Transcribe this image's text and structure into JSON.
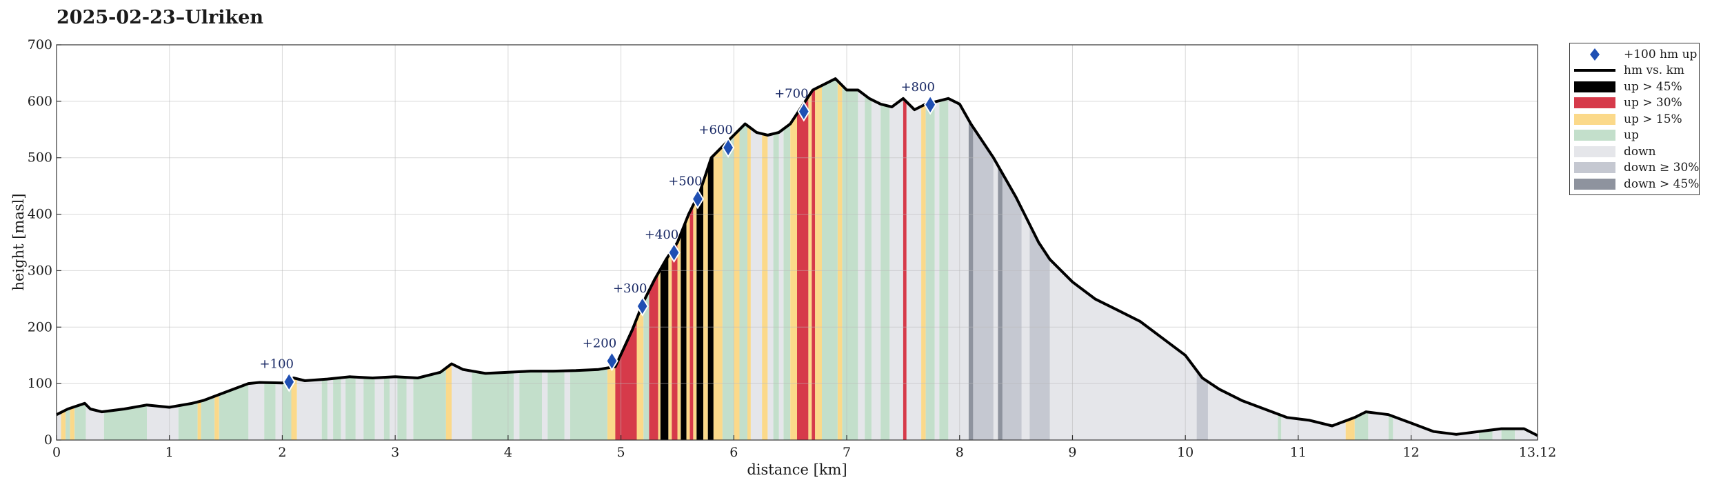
{
  "chart_data": {
    "type": "area",
    "title": "2025-02-23–Ulriken",
    "xlabel": "distance [km]",
    "ylabel": "height [masl]",
    "xlim": [
      0,
      13.12
    ],
    "ylim": [
      0,
      700
    ],
    "x_ticks": [
      "0",
      "1",
      "2",
      "3",
      "4",
      "5",
      "6",
      "7",
      "8",
      "9",
      "10",
      "11",
      "12",
      "13.12"
    ],
    "x_tick_values": [
      0,
      1,
      2,
      3,
      4,
      5,
      6,
      7,
      8,
      9,
      10,
      11,
      12,
      13.12
    ],
    "y_ticks": [
      "0",
      "100",
      "200",
      "300",
      "400",
      "500",
      "600",
      "700"
    ],
    "y_tick_values": [
      0,
      100,
      200,
      300,
      400,
      500,
      600,
      700
    ],
    "grid": true,
    "legend_placement": "outside-right",
    "colors": {
      "up_gt_45": "#000000",
      "up_gt_30": "#d63a4a",
      "up_gt_15": "#fbd98a",
      "up": "#c3dfcb",
      "down": "#e5e6ea",
      "down_ge_30": "#c5c8d1",
      "down_gt_45": "#8e939e",
      "profile_line": "#000000",
      "marker": "#1f4fb3"
    },
    "legend": [
      {
        "key": "marker",
        "label": "+100 hm up"
      },
      {
        "key": "line",
        "label": "hm vs. km"
      },
      {
        "key": "up_gt_45",
        "label": "up > 45%"
      },
      {
        "key": "up_gt_30",
        "label": "up > 30%"
      },
      {
        "key": "up_gt_15",
        "label": "up > 15%"
      },
      {
        "key": "up",
        "label": "up"
      },
      {
        "key": "down",
        "label": "down"
      },
      {
        "key": "down_ge_30",
        "label": "down ≥ 30%"
      },
      {
        "key": "down_gt_45",
        "label": "down > 45%"
      }
    ],
    "profile": {
      "x": [
        0,
        0.1,
        0.25,
        0.3,
        0.4,
        0.6,
        0.8,
        0.9,
        1.0,
        1.2,
        1.3,
        1.5,
        1.7,
        1.8,
        2.0,
        2.1,
        2.2,
        2.4,
        2.6,
        2.8,
        3.0,
        3.2,
        3.4,
        3.5,
        3.6,
        3.8,
        4.0,
        4.2,
        4.4,
        4.6,
        4.8,
        4.95,
        5.1,
        5.2,
        5.3,
        5.4,
        5.5,
        5.6,
        5.7,
        5.8,
        5.9,
        6.0,
        6.1,
        6.2,
        6.3,
        6.4,
        6.5,
        6.6,
        6.7,
        6.8,
        6.9,
        7.0,
        7.1,
        7.2,
        7.3,
        7.4,
        7.5,
        7.6,
        7.7,
        7.8,
        7.9,
        8.0,
        8.1,
        8.3,
        8.5,
        8.7,
        8.8,
        9.0,
        9.2,
        9.4,
        9.6,
        9.8,
        10.0,
        10.15,
        10.3,
        10.5,
        10.7,
        10.9,
        11.1,
        11.3,
        11.5,
        11.6,
        11.8,
        12.0,
        12.2,
        12.4,
        12.6,
        12.8,
        13.0,
        13.12
      ],
      "y": [
        45,
        55,
        65,
        55,
        50,
        55,
        62,
        60,
        58,
        65,
        70,
        85,
        100,
        102,
        101,
        110,
        105,
        108,
        112,
        110,
        112,
        110,
        120,
        135,
        125,
        118,
        120,
        122,
        122,
        123,
        125,
        130,
        195,
        245,
        285,
        320,
        350,
        400,
        440,
        500,
        520,
        540,
        560,
        545,
        540,
        545,
        560,
        590,
        620,
        630,
        640,
        620,
        620,
        605,
        595,
        590,
        605,
        585,
        595,
        600,
        605,
        595,
        560,
        500,
        430,
        350,
        320,
        280,
        250,
        230,
        210,
        180,
        150,
        110,
        90,
        70,
        55,
        40,
        35,
        25,
        40,
        50,
        45,
        30,
        15,
        10,
        15,
        20,
        20,
        8
      ],
      "segments": [
        {
          "x0": 0.0,
          "x1": 0.04,
          "cls": "down"
        },
        {
          "x0": 0.04,
          "x1": 0.08,
          "cls": "up_gt_15"
        },
        {
          "x0": 0.08,
          "x1": 0.12,
          "cls": "up"
        },
        {
          "x0": 0.12,
          "x1": 0.16,
          "cls": "up_gt_15"
        },
        {
          "x0": 0.16,
          "x1": 0.26,
          "cls": "up"
        },
        {
          "x0": 0.26,
          "x1": 0.42,
          "cls": "down"
        },
        {
          "x0": 0.42,
          "x1": 0.8,
          "cls": "up"
        },
        {
          "x0": 0.8,
          "x1": 0.98,
          "cls": "down"
        },
        {
          "x0": 0.98,
          "x1": 1.08,
          "cls": "down"
        },
        {
          "x0": 1.08,
          "x1": 1.25,
          "cls": "up"
        },
        {
          "x0": 1.25,
          "x1": 1.28,
          "cls": "up_gt_15"
        },
        {
          "x0": 1.28,
          "x1": 1.4,
          "cls": "up"
        },
        {
          "x0": 1.4,
          "x1": 1.44,
          "cls": "up_gt_15"
        },
        {
          "x0": 1.44,
          "x1": 1.7,
          "cls": "up"
        },
        {
          "x0": 1.7,
          "x1": 1.84,
          "cls": "down"
        },
        {
          "x0": 1.84,
          "x1": 1.94,
          "cls": "up"
        },
        {
          "x0": 1.94,
          "x1": 2.0,
          "cls": "down"
        },
        {
          "x0": 2.0,
          "x1": 2.08,
          "cls": "up"
        },
        {
          "x0": 2.08,
          "x1": 2.13,
          "cls": "up_gt_15"
        },
        {
          "x0": 2.13,
          "x1": 2.35,
          "cls": "down"
        },
        {
          "x0": 2.35,
          "x1": 2.4,
          "cls": "up"
        },
        {
          "x0": 2.4,
          "x1": 2.45,
          "cls": "down"
        },
        {
          "x0": 2.45,
          "x1": 2.52,
          "cls": "up"
        },
        {
          "x0": 2.52,
          "x1": 2.56,
          "cls": "down"
        },
        {
          "x0": 2.56,
          "x1": 2.65,
          "cls": "up"
        },
        {
          "x0": 2.65,
          "x1": 2.72,
          "cls": "down"
        },
        {
          "x0": 2.72,
          "x1": 2.82,
          "cls": "up"
        },
        {
          "x0": 2.82,
          "x1": 2.9,
          "cls": "down"
        },
        {
          "x0": 2.9,
          "x1": 2.95,
          "cls": "up"
        },
        {
          "x0": 2.95,
          "x1": 3.02,
          "cls": "down"
        },
        {
          "x0": 3.02,
          "x1": 3.1,
          "cls": "up"
        },
        {
          "x0": 3.1,
          "x1": 3.16,
          "cls": "down"
        },
        {
          "x0": 3.16,
          "x1": 3.45,
          "cls": "up"
        },
        {
          "x0": 3.45,
          "x1": 3.5,
          "cls": "up_gt_15"
        },
        {
          "x0": 3.5,
          "x1": 3.68,
          "cls": "down"
        },
        {
          "x0": 3.68,
          "x1": 4.05,
          "cls": "up"
        },
        {
          "x0": 4.05,
          "x1": 4.1,
          "cls": "down"
        },
        {
          "x0": 4.1,
          "x1": 4.3,
          "cls": "up"
        },
        {
          "x0": 4.3,
          "x1": 4.35,
          "cls": "down"
        },
        {
          "x0": 4.35,
          "x1": 4.5,
          "cls": "up"
        },
        {
          "x0": 4.5,
          "x1": 4.55,
          "cls": "down"
        },
        {
          "x0": 4.55,
          "x1": 4.88,
          "cls": "up"
        },
        {
          "x0": 4.88,
          "x1": 4.95,
          "cls": "up_gt_15"
        },
        {
          "x0": 4.95,
          "x1": 5.14,
          "cls": "up_gt_30"
        },
        {
          "x0": 5.14,
          "x1": 5.2,
          "cls": "up_gt_15"
        },
        {
          "x0": 5.2,
          "x1": 5.25,
          "cls": "up"
        },
        {
          "x0": 5.25,
          "x1": 5.33,
          "cls": "up_gt_30"
        },
        {
          "x0": 5.33,
          "x1": 5.35,
          "cls": "up_gt_15"
        },
        {
          "x0": 5.35,
          "x1": 5.42,
          "cls": "up_gt_45"
        },
        {
          "x0": 5.42,
          "x1": 5.45,
          "cls": "up_gt_15"
        },
        {
          "x0": 5.45,
          "x1": 5.5,
          "cls": "up_gt_30"
        },
        {
          "x0": 5.5,
          "x1": 5.53,
          "cls": "up_gt_15"
        },
        {
          "x0": 5.53,
          "x1": 5.58,
          "cls": "up_gt_45"
        },
        {
          "x0": 5.58,
          "x1": 5.61,
          "cls": "up_gt_15"
        },
        {
          "x0": 5.61,
          "x1": 5.64,
          "cls": "up_gt_30"
        },
        {
          "x0": 5.64,
          "x1": 5.67,
          "cls": "up_gt_15"
        },
        {
          "x0": 5.67,
          "x1": 5.73,
          "cls": "up_gt_45"
        },
        {
          "x0": 5.73,
          "x1": 5.77,
          "cls": "up_gt_15"
        },
        {
          "x0": 5.77,
          "x1": 5.82,
          "cls": "up_gt_45"
        },
        {
          "x0": 5.82,
          "x1": 5.9,
          "cls": "up_gt_15"
        },
        {
          "x0": 5.9,
          "x1": 6.0,
          "cls": "up"
        },
        {
          "x0": 6.0,
          "x1": 6.05,
          "cls": "up_gt_15"
        },
        {
          "x0": 6.05,
          "x1": 6.12,
          "cls": "up"
        },
        {
          "x0": 6.12,
          "x1": 6.15,
          "cls": "up_gt_15"
        },
        {
          "x0": 6.15,
          "x1": 6.25,
          "cls": "down"
        },
        {
          "x0": 6.25,
          "x1": 6.3,
          "cls": "up_gt_15"
        },
        {
          "x0": 6.3,
          "x1": 6.35,
          "cls": "down"
        },
        {
          "x0": 6.35,
          "x1": 6.4,
          "cls": "up"
        },
        {
          "x0": 6.4,
          "x1": 6.44,
          "cls": "down"
        },
        {
          "x0": 6.44,
          "x1": 6.5,
          "cls": "up"
        },
        {
          "x0": 6.5,
          "x1": 6.56,
          "cls": "up_gt_15"
        },
        {
          "x0": 6.56,
          "x1": 6.66,
          "cls": "up_gt_30"
        },
        {
          "x0": 6.66,
          "x1": 6.69,
          "cls": "up_gt_15"
        },
        {
          "x0": 6.69,
          "x1": 6.72,
          "cls": "up_gt_30"
        },
        {
          "x0": 6.72,
          "x1": 6.78,
          "cls": "up_gt_15"
        },
        {
          "x0": 6.78,
          "x1": 6.92,
          "cls": "up"
        },
        {
          "x0": 6.92,
          "x1": 6.96,
          "cls": "up_gt_15"
        },
        {
          "x0": 6.96,
          "x1": 7.1,
          "cls": "up"
        },
        {
          "x0": 7.1,
          "x1": 7.16,
          "cls": "down"
        },
        {
          "x0": 7.16,
          "x1": 7.22,
          "cls": "up"
        },
        {
          "x0": 7.22,
          "x1": 7.3,
          "cls": "down"
        },
        {
          "x0": 7.3,
          "x1": 7.38,
          "cls": "up"
        },
        {
          "x0": 7.38,
          "x1": 7.5,
          "cls": "down"
        },
        {
          "x0": 7.5,
          "x1": 7.53,
          "cls": "up_gt_30"
        },
        {
          "x0": 7.53,
          "x1": 7.66,
          "cls": "down"
        },
        {
          "x0": 7.66,
          "x1": 7.7,
          "cls": "up_gt_15"
        },
        {
          "x0": 7.7,
          "x1": 7.78,
          "cls": "up"
        },
        {
          "x0": 7.78,
          "x1": 7.82,
          "cls": "down"
        },
        {
          "x0": 7.82,
          "x1": 7.9,
          "cls": "up"
        },
        {
          "x0": 7.9,
          "x1": 8.08,
          "cls": "down"
        },
        {
          "x0": 8.08,
          "x1": 8.12,
          "cls": "down_gt_45"
        },
        {
          "x0": 8.12,
          "x1": 8.3,
          "cls": "down_ge_30"
        },
        {
          "x0": 8.3,
          "x1": 8.34,
          "cls": "down"
        },
        {
          "x0": 8.34,
          "x1": 8.38,
          "cls": "down_gt_45"
        },
        {
          "x0": 8.38,
          "x1": 8.55,
          "cls": "down_ge_30"
        },
        {
          "x0": 8.55,
          "x1": 8.62,
          "cls": "down"
        },
        {
          "x0": 8.62,
          "x1": 8.8,
          "cls": "down_ge_30"
        },
        {
          "x0": 8.8,
          "x1": 10.1,
          "cls": "down"
        },
        {
          "x0": 10.1,
          "x1": 10.2,
          "cls": "down_ge_30"
        },
        {
          "x0": 10.2,
          "x1": 10.82,
          "cls": "down"
        },
        {
          "x0": 10.82,
          "x1": 10.85,
          "cls": "up"
        },
        {
          "x0": 10.85,
          "x1": 11.42,
          "cls": "down"
        },
        {
          "x0": 11.42,
          "x1": 11.5,
          "cls": "up_gt_15"
        },
        {
          "x0": 11.5,
          "x1": 11.62,
          "cls": "up"
        },
        {
          "x0": 11.62,
          "x1": 11.8,
          "cls": "down"
        },
        {
          "x0": 11.8,
          "x1": 11.84,
          "cls": "up"
        },
        {
          "x0": 11.84,
          "x1": 12.6,
          "cls": "down"
        },
        {
          "x0": 12.6,
          "x1": 12.72,
          "cls": "up"
        },
        {
          "x0": 12.72,
          "x1": 12.8,
          "cls": "down"
        },
        {
          "x0": 12.8,
          "x1": 12.92,
          "cls": "up"
        },
        {
          "x0": 12.92,
          "x1": 13.12,
          "cls": "down"
        }
      ]
    },
    "markers": [
      {
        "label": "+100",
        "x": 2.06,
        "y": 103
      },
      {
        "label": "+200",
        "x": 4.92,
        "y": 140
      },
      {
        "label": "+300",
        "x": 5.19,
        "y": 237
      },
      {
        "label": "+400",
        "x": 5.47,
        "y": 332
      },
      {
        "label": "+500",
        "x": 5.68,
        "y": 427
      },
      {
        "label": "+600",
        "x": 5.95,
        "y": 518
      },
      {
        "label": "+700",
        "x": 6.62,
        "y": 582
      },
      {
        "label": "+800",
        "x": 7.74,
        "y": 594
      }
    ]
  }
}
